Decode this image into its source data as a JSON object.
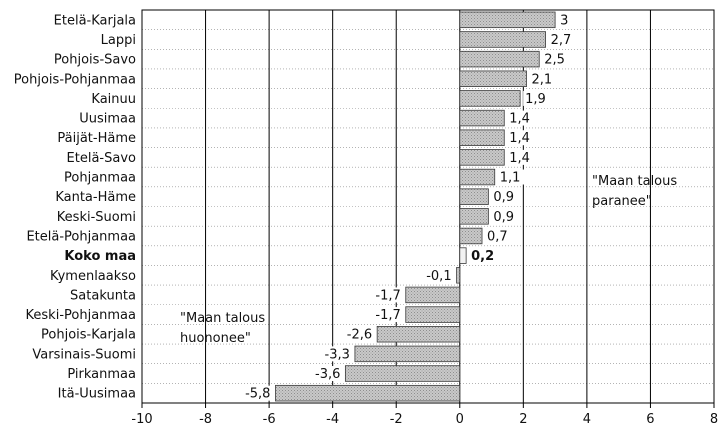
{
  "chart_data": {
    "type": "bar",
    "orientation": "horizontal",
    "categories": [
      "Etelä-Karjala",
      "Lappi",
      "Pohjois-Savo",
      "Pohjois-Pohjanmaa",
      "Kainuu",
      "Uusimaa",
      "Päijät-Häme",
      "Etelä-Savo",
      "Pohjanmaa",
      "Kanta-Häme",
      "Keski-Suomi",
      "Etelä-Pohjanmaa",
      "Koko maa",
      "Kymenlaakso",
      "Satakunta",
      "Keski-Pohjanmaa",
      "Pohjois-Karjala",
      "Varsinais-Suomi",
      "Pirkanmaa",
      "Itä-Uusimaa"
    ],
    "values": [
      3,
      2.7,
      2.5,
      2.1,
      1.9,
      1.4,
      1.4,
      1.4,
      1.1,
      0.9,
      0.9,
      0.7,
      0.2,
      -0.1,
      -1.7,
      -1.7,
      -2.6,
      -3.3,
      -3.6,
      -5.8
    ],
    "value_labels": [
      "3",
      "2,7",
      "2,5",
      "2,1",
      "1,9",
      "1,4",
      "1,4",
      "1,4",
      "1,1",
      "0,9",
      "0,9",
      "0,7",
      "0,2",
      "-0,1",
      "-1,7",
      "-1,7",
      "-2,6",
      "-3,3",
      "-3,6",
      "-5,8"
    ],
    "highlight_category": "Koko maa",
    "xlim": [
      -10,
      8
    ],
    "x_ticks": [
      "-10",
      "-8",
      "-6",
      "-4",
      "-2",
      "0",
      "2",
      "4",
      "6",
      "8"
    ],
    "grid": "vertical major lines, dotted row separators",
    "annotations": {
      "positive": [
        "\"Maan talous",
        "paranee\""
      ],
      "negative": [
        "\"Maan talous",
        "huononee\""
      ]
    },
    "colors": {
      "bar_fill": "#c6c6c6",
      "bar_stroke": "#3a3a3a",
      "highlight_fill": "#f2f2f2",
      "grid": "#000000"
    }
  }
}
